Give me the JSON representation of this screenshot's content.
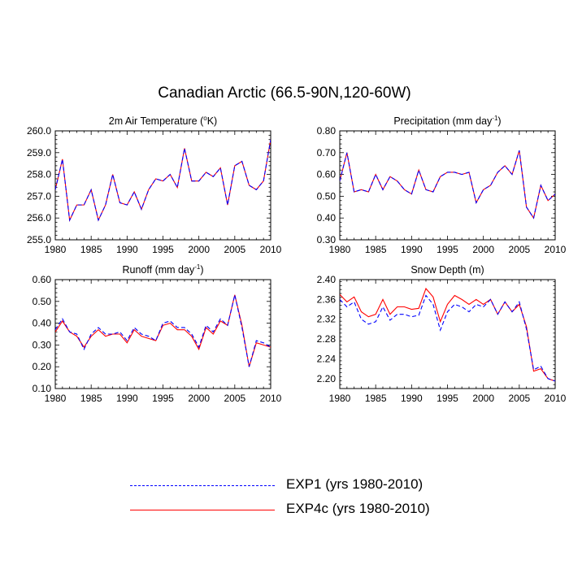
{
  "title": "Canadian Arctic (66.5-90N,120-60W)",
  "legend": {
    "exp1_label": "EXP1 (yrs 1980-2010)",
    "exp4c_label": "EXP4c (yrs 1980-2010)"
  },
  "colors": {
    "exp1": "#0000ff",
    "exp4c": "#ff0000"
  },
  "chart_data": [
    {
      "type": "line",
      "title": "2m Air Temperature (°K)",
      "title_main": "2m Air Temperature (",
      "title_sup": "o",
      "title_end": "K)",
      "xlim": [
        1980,
        2010
      ],
      "ylim": [
        255.0,
        260.0
      ],
      "xticks": [
        1980,
        1985,
        1990,
        1995,
        2000,
        2005,
        2010
      ],
      "yticks": [
        255.0,
        256.0,
        257.0,
        258.0,
        259.0,
        260.0
      ],
      "ytick_labels": [
        "255.0",
        "256.0",
        "257.0",
        "258.0",
        "259.0",
        "260.0"
      ],
      "x": [
        1980,
        1981,
        1982,
        1983,
        1984,
        1985,
        1986,
        1987,
        1988,
        1989,
        1990,
        1991,
        1992,
        1993,
        1994,
        1995,
        1996,
        1997,
        1998,
        1999,
        2000,
        2001,
        2002,
        2003,
        2004,
        2005,
        2006,
        2007,
        2008,
        2009,
        2010
      ],
      "series": [
        {
          "name": "EXP1 (yrs 1980-2010)",
          "style": "dash",
          "values": [
            257.3,
            258.7,
            255.9,
            256.6,
            256.6,
            257.3,
            255.9,
            256.6,
            258.0,
            256.7,
            256.6,
            257.2,
            256.4,
            257.3,
            257.8,
            257.7,
            258.0,
            257.4,
            259.2,
            257.7,
            257.7,
            258.1,
            257.9,
            258.3,
            256.6,
            258.4,
            258.6,
            257.5,
            257.3,
            257.7,
            259.6
          ]
        },
        {
          "name": "EXP4c (yrs 1980-2010)",
          "style": "solid",
          "values": [
            257.3,
            258.7,
            255.9,
            256.6,
            256.6,
            257.3,
            255.9,
            256.6,
            258.0,
            256.7,
            256.6,
            257.2,
            256.4,
            257.3,
            257.8,
            257.7,
            258.0,
            257.4,
            259.2,
            257.7,
            257.7,
            258.1,
            257.9,
            258.3,
            256.6,
            258.4,
            258.6,
            257.5,
            257.3,
            257.7,
            259.6
          ]
        }
      ]
    },
    {
      "type": "line",
      "title": "Precipitation (mm day-1)",
      "title_main": "Precipitation (mm day",
      "title_sup": "-1",
      "title_end": ")",
      "xlim": [
        1980,
        2010
      ],
      "ylim": [
        0.3,
        0.8
      ],
      "xticks": [
        1980,
        1985,
        1990,
        1995,
        2000,
        2005,
        2010
      ],
      "yticks": [
        0.3,
        0.4,
        0.5,
        0.6,
        0.7,
        0.8
      ],
      "ytick_labels": [
        "0.30",
        "0.40",
        "0.50",
        "0.60",
        "0.70",
        "0.80"
      ],
      "x": [
        1980,
        1981,
        1982,
        1983,
        1984,
        1985,
        1986,
        1987,
        1988,
        1989,
        1990,
        1991,
        1992,
        1993,
        1994,
        1995,
        1996,
        1997,
        1998,
        1999,
        2000,
        2001,
        2002,
        2003,
        2004,
        2005,
        2006,
        2007,
        2008,
        2009,
        2010
      ],
      "series": [
        {
          "name": "EXP1 (yrs 1980-2010)",
          "style": "dash",
          "values": [
            0.57,
            0.7,
            0.52,
            0.53,
            0.52,
            0.6,
            0.53,
            0.59,
            0.57,
            0.53,
            0.51,
            0.62,
            0.53,
            0.52,
            0.59,
            0.61,
            0.61,
            0.6,
            0.61,
            0.47,
            0.53,
            0.55,
            0.61,
            0.64,
            0.6,
            0.71,
            0.45,
            0.4,
            0.55,
            0.48,
            0.51
          ]
        },
        {
          "name": "EXP4c (yrs 1980-2010)",
          "style": "solid",
          "values": [
            0.57,
            0.7,
            0.52,
            0.53,
            0.52,
            0.6,
            0.53,
            0.59,
            0.57,
            0.53,
            0.51,
            0.62,
            0.53,
            0.52,
            0.59,
            0.61,
            0.61,
            0.6,
            0.61,
            0.47,
            0.53,
            0.55,
            0.61,
            0.64,
            0.6,
            0.71,
            0.45,
            0.4,
            0.55,
            0.48,
            0.51
          ]
        }
      ]
    },
    {
      "type": "line",
      "title": "Runoff (mm day-1)",
      "title_main": "Runoff (mm day",
      "title_sup": "-1",
      "title_end": ")",
      "xlim": [
        1980,
        2010
      ],
      "ylim": [
        0.1,
        0.6
      ],
      "xticks": [
        1980,
        1985,
        1990,
        1995,
        2000,
        2005,
        2010
      ],
      "yticks": [
        0.1,
        0.2,
        0.3,
        0.4,
        0.5,
        0.6
      ],
      "ytick_labels": [
        "0.10",
        "0.20",
        "0.30",
        "0.40",
        "0.50",
        "0.60"
      ],
      "x": [
        1980,
        1981,
        1982,
        1983,
        1984,
        1985,
        1986,
        1987,
        1988,
        1989,
        1990,
        1991,
        1992,
        1993,
        1994,
        1995,
        1996,
        1997,
        1998,
        1999,
        2000,
        2001,
        2002,
        2003,
        2004,
        2005,
        2006,
        2007,
        2008,
        2009,
        2010
      ],
      "series": [
        {
          "name": "EXP1 (yrs 1980-2010)",
          "style": "dash",
          "values": [
            0.37,
            0.42,
            0.36,
            0.35,
            0.28,
            0.35,
            0.38,
            0.35,
            0.35,
            0.36,
            0.32,
            0.38,
            0.35,
            0.34,
            0.32,
            0.4,
            0.41,
            0.38,
            0.38,
            0.35,
            0.29,
            0.39,
            0.36,
            0.42,
            0.39,
            0.53,
            0.38,
            0.2,
            0.32,
            0.31,
            0.29
          ]
        },
        {
          "name": "EXP4c (yrs 1980-2010)",
          "style": "solid",
          "values": [
            0.36,
            0.41,
            0.36,
            0.34,
            0.29,
            0.34,
            0.37,
            0.34,
            0.35,
            0.35,
            0.31,
            0.37,
            0.34,
            0.33,
            0.32,
            0.39,
            0.4,
            0.37,
            0.37,
            0.34,
            0.28,
            0.38,
            0.35,
            0.41,
            0.39,
            0.53,
            0.39,
            0.2,
            0.31,
            0.3,
            0.29
          ]
        }
      ]
    },
    {
      "type": "line",
      "title": "Snow Depth (m)",
      "title_main": "Snow Depth (m)",
      "title_sup": "",
      "title_end": "",
      "xlim": [
        1980,
        2010
      ],
      "ylim": [
        2.18,
        2.4
      ],
      "xticks": [
        1980,
        1985,
        1990,
        1995,
        2000,
        2005,
        2010
      ],
      "yticks": [
        2.2,
        2.24,
        2.28,
        2.32,
        2.36,
        2.4
      ],
      "ytick_labels": [
        "2.20",
        "2.24",
        "2.28",
        "2.32",
        "2.36",
        "2.40"
      ],
      "x": [
        1980,
        1981,
        1982,
        1983,
        1984,
        1985,
        1986,
        1987,
        1988,
        1989,
        1990,
        1991,
        1992,
        1993,
        1994,
        1995,
        1996,
        1997,
        1998,
        1999,
        2000,
        2001,
        2002,
        2003,
        2004,
        2005,
        2006,
        2007,
        2008,
        2009,
        2010
      ],
      "series": [
        {
          "name": "EXP1 (yrs 1980-2010)",
          "style": "dash",
          "values": [
            2.36,
            2.345,
            2.355,
            2.32,
            2.31,
            2.315,
            2.345,
            2.318,
            2.33,
            2.33,
            2.325,
            2.328,
            2.368,
            2.35,
            2.298,
            2.335,
            2.35,
            2.345,
            2.335,
            2.35,
            2.345,
            2.36,
            2.33,
            2.355,
            2.335,
            2.355,
            2.3,
            2.218,
            2.225,
            2.2,
            2.195
          ]
        },
        {
          "name": "EXP4c (yrs 1980-2010)",
          "style": "solid",
          "values": [
            2.37,
            2.355,
            2.365,
            2.335,
            2.325,
            2.33,
            2.36,
            2.33,
            2.345,
            2.345,
            2.34,
            2.342,
            2.382,
            2.365,
            2.315,
            2.35,
            2.368,
            2.36,
            2.35,
            2.36,
            2.35,
            2.36,
            2.33,
            2.355,
            2.335,
            2.35,
            2.305,
            2.215,
            2.22,
            2.2,
            2.195
          ]
        }
      ]
    }
  ]
}
